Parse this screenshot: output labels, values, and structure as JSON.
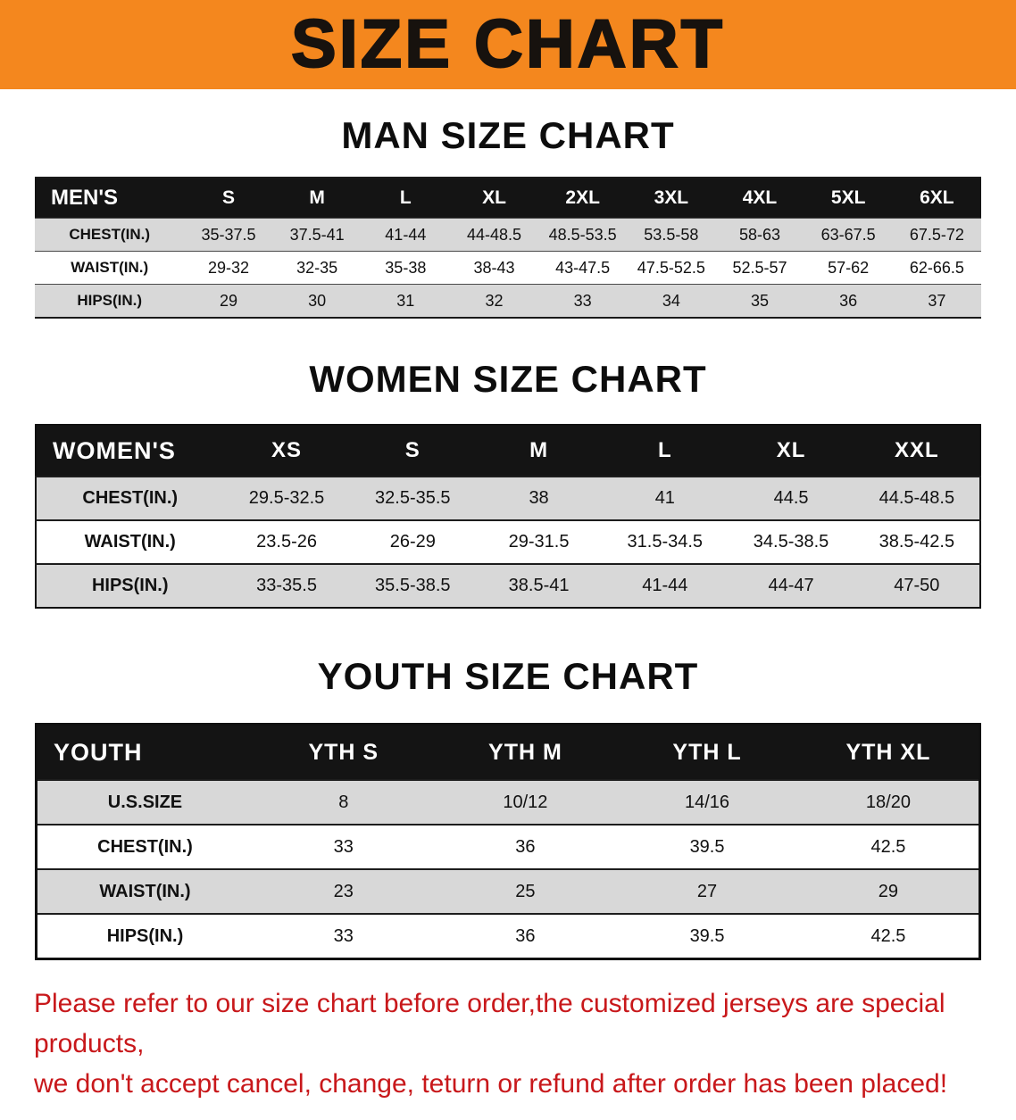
{
  "banner": {
    "title": "SIZE CHART"
  },
  "sections": {
    "men": {
      "heading": "MAN SIZE CHART",
      "table": {
        "header": [
          "MEN'S",
          "S",
          "M",
          "L",
          "XL",
          "2XL",
          "3XL",
          "4XL",
          "5XL",
          "6XL"
        ],
        "rows": [
          [
            "CHEST(IN.)",
            "35-37.5",
            "37.5-41",
            "41-44",
            "44-48.5",
            "48.5-53.5",
            "53.5-58",
            "58-63",
            "63-67.5",
            "67.5-72"
          ],
          [
            "WAIST(IN.)",
            "29-32",
            "32-35",
            "35-38",
            "38-43",
            "43-47.5",
            "47.5-52.5",
            "52.5-57",
            "57-62",
            "62-66.5"
          ],
          [
            "HIPS(IN.)",
            "29",
            "30",
            "31",
            "32",
            "33",
            "34",
            "35",
            "36",
            "37"
          ]
        ]
      }
    },
    "women": {
      "heading": "WOMEN SIZE CHART",
      "table": {
        "header": [
          "WOMEN'S",
          "XS",
          "S",
          "M",
          "L",
          "XL",
          "XXL"
        ],
        "rows": [
          [
            "CHEST(IN.)",
            "29.5-32.5",
            "32.5-35.5",
            "38",
            "41",
            "44.5",
            "44.5-48.5"
          ],
          [
            "WAIST(IN.)",
            "23.5-26",
            "26-29",
            "29-31.5",
            "31.5-34.5",
            "34.5-38.5",
            "38.5-42.5"
          ],
          [
            "HIPS(IN.)",
            "33-35.5",
            "35.5-38.5",
            "38.5-41",
            "41-44",
            "44-47",
            "47-50"
          ]
        ]
      }
    },
    "youth": {
      "heading": "YOUTH SIZE CHART",
      "table": {
        "header": [
          "YOUTH",
          "YTH S",
          "YTH M",
          "YTH L",
          "YTH XL"
        ],
        "rows": [
          [
            "U.S.SIZE",
            "8",
            "10/12",
            "14/16",
            "18/20"
          ],
          [
            "CHEST(IN.)",
            "33",
            "36",
            "39.5",
            "42.5"
          ],
          [
            "WAIST(IN.)",
            "23",
            "25",
            "27",
            "29"
          ],
          [
            "HIPS(IN.)",
            "33",
            "36",
            "39.5",
            "42.5"
          ]
        ]
      }
    }
  },
  "note": {
    "line1": "Please refer to our size chart before order,the customized jerseys are special products,",
    "line2": "we don't accept cancel, change, teturn or refund after order has been placed!"
  },
  "colors": {
    "banner_orange": "#F4871E",
    "table_header_bg": "#141414",
    "row_stripe_gray": "#D8D8D8",
    "note_red": "#C8181B"
  }
}
